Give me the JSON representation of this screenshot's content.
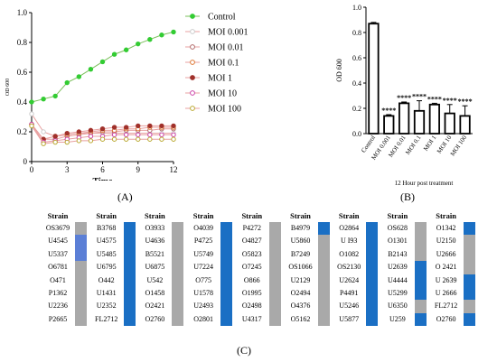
{
  "panel_labels": {
    "a": "(A)",
    "b": "(B)",
    "c": "(C)"
  },
  "colors": {
    "blue": "#1a6fc4",
    "light_blue": "#5b7fd6",
    "gray": "#a9a9a9",
    "line_green": "#7bbf5b",
    "line_red": "#e8a0a0",
    "control": "#33cc33",
    "moi_0_001": "#cccccc",
    "moi_0_01": "#b06a6a",
    "moi_0_1": "#dd7733",
    "moi_1": "#a0302a",
    "moi_10": "#cc44aa",
    "moi_100": "#bbaa33"
  },
  "chart_data": [
    {
      "type": "line",
      "xlabel": "Time",
      "ylabel": "OD 600",
      "xlim": [
        0,
        12
      ],
      "ylim": [
        0,
        1.0
      ],
      "xticks": [
        "0",
        "3",
        "6",
        "9",
        "12"
      ],
      "yticks": [
        "0",
        "0.2",
        "0.4",
        "0.6",
        "0.8",
        "1.0"
      ],
      "legend_position": "right",
      "x": [
        0,
        1,
        2,
        3,
        4,
        5,
        6,
        7,
        8,
        9,
        10,
        11,
        12
      ],
      "series": [
        {
          "name": "Control",
          "values": [
            0.4,
            0.42,
            0.44,
            0.53,
            0.57,
            0.62,
            0.67,
            0.72,
            0.75,
            0.79,
            0.82,
            0.85,
            0.87
          ]
        },
        {
          "name": "MOI 0.001",
          "values": [
            0.32,
            0.2,
            0.17,
            0.18,
            0.19,
            0.19,
            0.19,
            0.19,
            0.19,
            0.19,
            0.19,
            0.19,
            0.19
          ]
        },
        {
          "name": "MOI 0.01",
          "values": [
            0.25,
            0.15,
            0.15,
            0.17,
            0.18,
            0.19,
            0.2,
            0.2,
            0.21,
            0.21,
            0.21,
            0.22,
            0.22
          ]
        },
        {
          "name": "MOI 0.1",
          "values": [
            0.25,
            0.15,
            0.17,
            0.18,
            0.19,
            0.2,
            0.21,
            0.21,
            0.22,
            0.22,
            0.23,
            0.23,
            0.23
          ]
        },
        {
          "name": "MOI 1",
          "values": [
            0.25,
            0.15,
            0.17,
            0.19,
            0.2,
            0.21,
            0.22,
            0.23,
            0.23,
            0.24,
            0.24,
            0.24,
            0.24
          ]
        },
        {
          "name": "MOI 10",
          "values": [
            0.25,
            0.13,
            0.14,
            0.15,
            0.16,
            0.17,
            0.17,
            0.18,
            0.18,
            0.18,
            0.18,
            0.18,
            0.18
          ]
        },
        {
          "name": "MOI 100",
          "values": [
            0.24,
            0.12,
            0.13,
            0.13,
            0.14,
            0.14,
            0.15,
            0.15,
            0.15,
            0.15,
            0.15,
            0.15,
            0.15
          ]
        }
      ]
    },
    {
      "type": "bar",
      "ylabel": "OD 600",
      "xlabel": "12 Hour post treatment",
      "ylim": [
        0,
        1.0
      ],
      "yticks": [
        "0.0",
        "0.2",
        "0.4",
        "0.6",
        "0.8",
        "1.0"
      ],
      "categories": [
        "Control",
        "MOI 0.001",
        "MOI 0.01",
        "MOI 0.1",
        "MOI 1",
        "MOI 10",
        "MOI 100"
      ],
      "values": [
        0.87,
        0.14,
        0.24,
        0.18,
        0.23,
        0.16,
        0.14
      ],
      "errors": [
        0.01,
        0.01,
        0.01,
        0.08,
        0.01,
        0.07,
        0.08
      ],
      "significance": [
        "",
        "****",
        "****",
        "****",
        "****",
        "****",
        "****"
      ]
    }
  ],
  "strain_table": {
    "header": "Strain",
    "columns": [
      {
        "strains": [
          "OS3679",
          "U4545",
          "U5337",
          "O6781",
          "O471",
          "P1362",
          "U2236",
          "P2665"
        ],
        "status": [
          "gray",
          "light_blue",
          "light_blue",
          "gray",
          "gray",
          "gray",
          "gray",
          "gray"
        ]
      },
      {
        "strains": [
          "B3768",
          "U4575",
          "U5485",
          "U6795",
          "O442",
          "U1431",
          "U2352",
          "FL2712"
        ],
        "status": [
          "blue",
          "blue",
          "blue",
          "blue",
          "blue",
          "blue",
          "blue",
          "blue"
        ]
      },
      {
        "strains": [
          "O3933",
          "U4636",
          "B5521",
          "U6875",
          "U542",
          "O1458",
          "O2421",
          "O2760"
        ],
        "status": [
          "gray",
          "gray",
          "gray",
          "gray",
          "gray",
          "gray",
          "gray",
          "gray"
        ]
      },
      {
        "strains": [
          "O4039",
          "P4725",
          "U5749",
          "U7224",
          "O775",
          "U1578",
          "U2493",
          "O2801"
        ],
        "status": [
          "blue",
          "blue",
          "blue",
          "blue",
          "blue",
          "blue",
          "blue",
          "blue"
        ]
      },
      {
        "strains": [
          "P4272",
          "O4827",
          "O5823",
          "O7245",
          "O866",
          "O1995",
          "O2498",
          "U4317"
        ],
        "status": [
          "gray",
          "gray",
          "gray",
          "gray",
          "gray",
          "gray",
          "gray",
          "gray"
        ]
      },
      {
        "strains": [
          "B4979",
          "U5860",
          "B7249",
          "OS1066",
          "U2129",
          "O2494",
          "O4376",
          "O5162"
        ],
        "status": [
          "blue",
          "gray",
          "gray",
          "gray",
          "gray",
          "gray",
          "gray",
          "gray"
        ]
      },
      {
        "strains": [
          "O2864",
          "U I93",
          "O1082",
          "OS2130",
          "U2624",
          "P4491",
          "U5246",
          "U5877"
        ],
        "status": [
          "blue",
          "blue",
          "blue",
          "blue",
          "blue",
          "blue",
          "blue",
          "blue"
        ]
      },
      {
        "strains": [
          "OS628",
          "O1301",
          "B2143",
          "U2639",
          "U4444",
          "U5299",
          "U6350",
          "U259"
        ],
        "status": [
          "gray",
          "gray",
          "gray",
          "blue",
          "blue",
          "blue",
          "gray",
          "blue"
        ]
      },
      {
        "strains": [
          "O1342",
          "U2150",
          "U2666",
          "O 2421",
          "U 2639",
          "U 2666",
          "FL2712",
          "O2760"
        ],
        "status": [
          "blue",
          "gray",
          "gray",
          "gray",
          "blue",
          "blue",
          "gray",
          "blue"
        ]
      }
    ]
  }
}
